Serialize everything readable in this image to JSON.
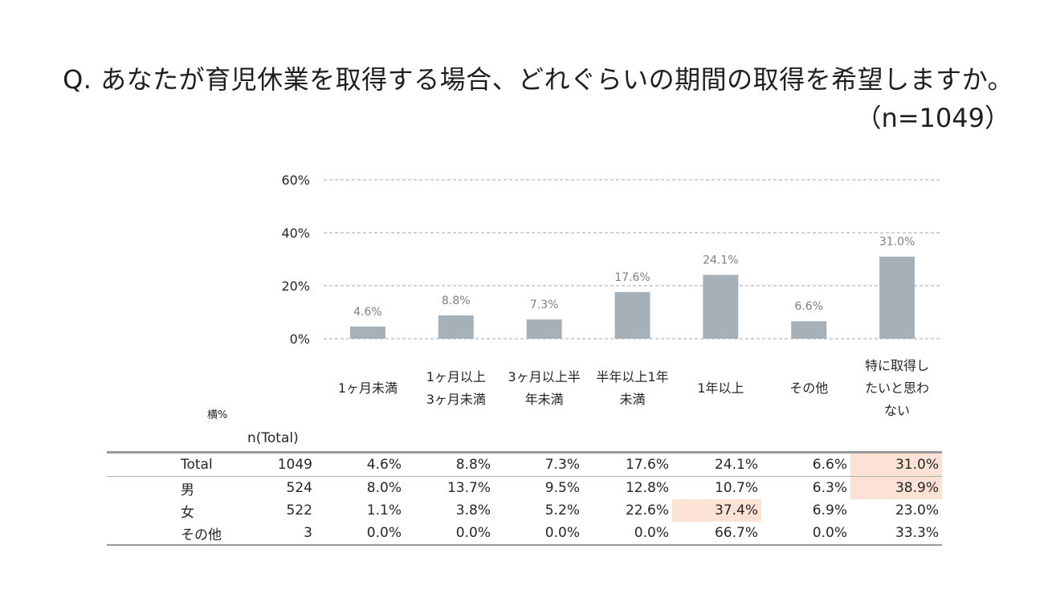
{
  "title": "Q. あなたが育児休業を取得する場合、どれぐらいの期間の取得を希望しますか。",
  "sample_size": "（n=1049）",
  "colors": {
    "bar": "#a5b0b8",
    "grid": "#a6a6a6",
    "highlight": "#fbe2d5"
  },
  "chart_data": {
    "type": "bar",
    "categories": [
      "1ヶ月未満",
      "1ヶ月以上\n3ヶ月未満",
      "3ヶ月以上半\n年未満",
      "半年以上1年\n未満",
      "1年以上",
      "その他",
      "特に取得し\nたいと思わ\nない"
    ],
    "values": [
      4.6,
      8.8,
      7.3,
      17.6,
      24.1,
      6.6,
      31.0
    ],
    "value_labels": [
      "4.6%",
      "8.8%",
      "7.3%",
      "17.6%",
      "24.1%",
      "6.6%",
      "31.0%"
    ],
    "yticks": [
      "0%",
      "20%",
      "40%",
      "60%"
    ],
    "ylim": [
      0,
      60
    ],
    "grid": "dashed",
    "legend": "none"
  },
  "table": {
    "corner_label": "横%",
    "n_header": "n(Total)",
    "rows": [
      {
        "label": "Total",
        "n": "1049",
        "values": [
          "4.6%",
          "8.8%",
          "7.3%",
          "17.6%",
          "24.1%",
          "6.6%",
          "31.0%"
        ],
        "highlight": [
          6
        ]
      },
      {
        "label": "男",
        "n": "524",
        "values": [
          "8.0%",
          "13.7%",
          "9.5%",
          "12.8%",
          "10.7%",
          "6.3%",
          "38.9%"
        ],
        "highlight": [
          6
        ]
      },
      {
        "label": "女",
        "n": "522",
        "values": [
          "1.1%",
          "3.8%",
          "5.2%",
          "22.6%",
          "37.4%",
          "6.9%",
          "23.0%"
        ],
        "highlight": [
          4
        ]
      },
      {
        "label": "その他",
        "n": "3",
        "values": [
          "0.0%",
          "0.0%",
          "0.0%",
          "0.0%",
          "66.7%",
          "0.0%",
          "33.3%"
        ],
        "highlight": []
      }
    ]
  }
}
